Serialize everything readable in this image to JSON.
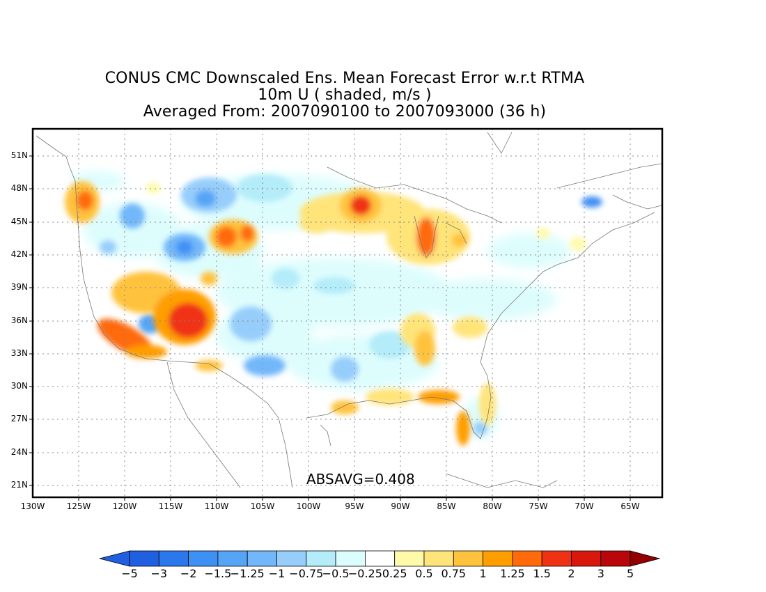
{
  "title": {
    "line1": "CONUS CMC Downscaled Ens. Mean Forecast Error w.r.t RTMA",
    "line2": "10m U ( shaded, m/s )",
    "line3": "Averaged From: 2007090100 to 2007093000 (36 h)"
  },
  "map": {
    "lat_labels": [
      "51N",
      "48N",
      "45N",
      "42N",
      "39N",
      "36N",
      "33N",
      "30N",
      "27N",
      "24N",
      "21N"
    ],
    "lon_labels": [
      "130W",
      "125W",
      "120W",
      "115W",
      "110W",
      "105W",
      "100W",
      "95W",
      "90W",
      "85W",
      "80W",
      "75W",
      "70W",
      "65W"
    ],
    "absavg": "ABSAVG=0.408"
  },
  "colorbar": {
    "labels": [
      "−5",
      "−3",
      "−2",
      "−1.5",
      "−1.25",
      "−1",
      "−0.75",
      "−0.5",
      "−0.25",
      "0.25",
      "0.5",
      "0.75",
      "1",
      "1.25",
      "1.5",
      "2",
      "3",
      "5"
    ],
    "colors": [
      "#1f5fe0",
      "#2b78ec",
      "#3f90f4",
      "#55a4f6",
      "#72b7f9",
      "#97cdfb",
      "#b4ecf9",
      "#dcfdfd",
      "#ffffff",
      "#fffaaa",
      "#ffe47a",
      "#ffc23d",
      "#ff9e00",
      "#ff6a0a",
      "#f03214",
      "#d8180c",
      "#b8060a",
      "#930000"
    ]
  }
}
